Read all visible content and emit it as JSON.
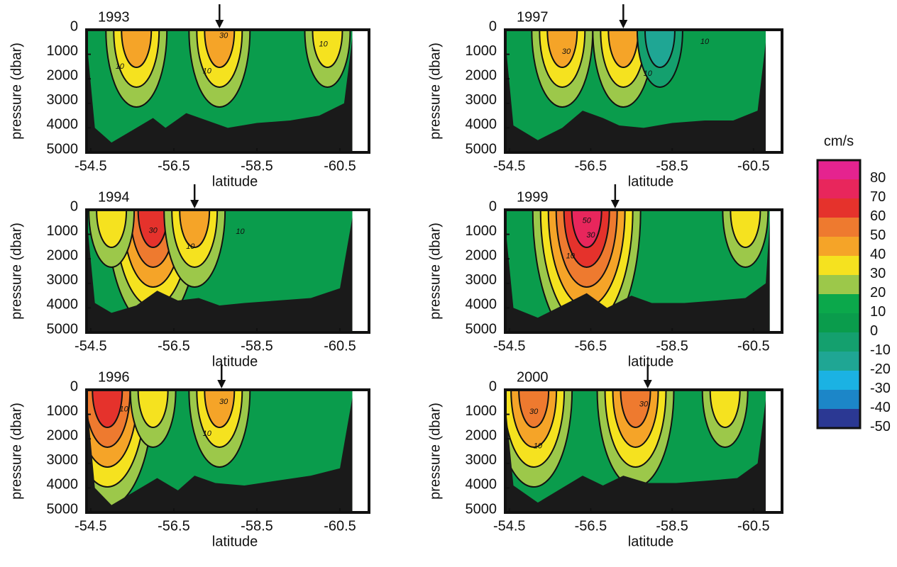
{
  "chart_data": [
    {
      "type": "contour",
      "title": "1993",
      "xlabel": "latitude",
      "ylabel": "pressure (dbar)",
      "xlim": [
        -54.4,
        -61.2
      ],
      "ylim": [
        0,
        5000
      ],
      "xticks": [
        -54.5,
        -56.5,
        -58.5,
        -60.5
      ],
      "yticks": [
        0,
        1000,
        2000,
        3000,
        4000,
        5000
      ],
      "arrow_lat": -57.6,
      "jet_cores": [
        {
          "lat": -57.6,
          "speed": 30
        },
        {
          "lat": -55.6,
          "speed": 30
        },
        {
          "lat": -60.2,
          "speed": 20
        }
      ],
      "contour_labels": [
        {
          "value": 30,
          "lat": -57.7,
          "pressure": 250
        },
        {
          "value": 10,
          "lat": -55.2,
          "pressure": 1500
        },
        {
          "value": 10,
          "lat": -57.3,
          "pressure": 1700
        },
        {
          "value": 10,
          "lat": -60.1,
          "pressure": 600
        }
      ],
      "bottom": {
        "lat": [
          -54.4,
          -54.6,
          -55.0,
          -55.5,
          -56.0,
          -56.3,
          -56.8,
          -57.3,
          -57.8,
          -58.5,
          -59.3,
          -60.0,
          -60.6,
          -60.8
        ],
        "depth": [
          400,
          4000,
          4600,
          4100,
          3600,
          4000,
          3400,
          3700,
          4000,
          3800,
          3700,
          3500,
          3000,
          300
        ]
      }
    },
    {
      "type": "contour",
      "title": "1997",
      "xlabel": "latitude",
      "ylabel": "pressure (dbar)",
      "xlim": [
        -54.4,
        -61.2
      ],
      "ylim": [
        0,
        5000
      ],
      "xticks": [
        -54.5,
        -56.5,
        -58.5,
        -60.5
      ],
      "yticks": [
        0,
        1000,
        2000,
        3000,
        4000,
        5000
      ],
      "arrow_lat": -57.3,
      "jet_cores": [
        {
          "lat": -55.8,
          "speed": 30
        },
        {
          "lat": -57.3,
          "speed": 30
        },
        {
          "lat": -58.2,
          "speed": -20
        }
      ],
      "contour_labels": [
        {
          "value": 30,
          "lat": -55.9,
          "pressure": 900
        },
        {
          "value": 10,
          "lat": -57.9,
          "pressure": 1800
        },
        {
          "value": 10,
          "lat": -59.3,
          "pressure": 500
        }
      ],
      "bottom": {
        "lat": [
          -54.4,
          -54.6,
          -55.2,
          -55.8,
          -56.3,
          -56.8,
          -57.2,
          -57.8,
          -58.5,
          -59.3,
          -60.0,
          -60.6,
          -60.8
        ],
        "depth": [
          400,
          3900,
          4500,
          4000,
          3300,
          3600,
          3900,
          4000,
          3800,
          3700,
          3700,
          3300,
          500
        ]
      }
    },
    {
      "type": "contour",
      "title": "1994",
      "xlabel": "latitude",
      "ylabel": "pressure (dbar)",
      "xlim": [
        -54.4,
        -61.2
      ],
      "ylim": [
        0,
        5000
      ],
      "xticks": [
        -54.5,
        -56.5,
        -58.5,
        -60.5
      ],
      "yticks": [
        0,
        1000,
        2000,
        3000,
        4000,
        5000
      ],
      "arrow_lat": -57.0,
      "jet_cores": [
        {
          "lat": -56.0,
          "speed": 50
        },
        {
          "lat": -57.0,
          "speed": 30
        },
        {
          "lat": -55.0,
          "speed": 20
        }
      ],
      "contour_labels": [
        {
          "value": 30,
          "lat": -56.0,
          "pressure": 850
        },
        {
          "value": 10,
          "lat": -56.9,
          "pressure": 1500
        },
        {
          "value": 10,
          "lat": -58.1,
          "pressure": 900
        }
      ],
      "bottom": {
        "lat": [
          -54.4,
          -54.6,
          -55.0,
          -55.6,
          -56.1,
          -56.6,
          -57.1,
          -57.6,
          -58.2,
          -59.0,
          -59.8,
          -60.5,
          -60.8
        ],
        "depth": [
          300,
          3800,
          4200,
          3900,
          3300,
          3700,
          3600,
          3900,
          3800,
          3700,
          3600,
          3200,
          300
        ]
      }
    },
    {
      "type": "contour",
      "title": "1999",
      "xlabel": "latitude",
      "ylabel": "pressure (dbar)",
      "xlim": [
        -54.4,
        -61.2
      ],
      "ylim": [
        0,
        5000
      ],
      "xticks": [
        -54.5,
        -56.5,
        -58.5,
        -60.5
      ],
      "yticks": [
        0,
        1000,
        2000,
        3000,
        4000,
        5000
      ],
      "arrow_lat": -57.1,
      "jet_cores": [
        {
          "lat": -56.4,
          "speed": 60
        },
        {
          "lat": -60.3,
          "speed": 20
        }
      ],
      "contour_labels": [
        {
          "value": 50,
          "lat": -56.4,
          "pressure": 450
        },
        {
          "value": 30,
          "lat": -56.5,
          "pressure": 1050
        },
        {
          "value": 10,
          "lat": -56.0,
          "pressure": 1900
        }
      ],
      "bottom": {
        "lat": [
          -54.4,
          -54.6,
          -55.2,
          -55.8,
          -56.4,
          -56.9,
          -57.5,
          -58.0,
          -58.8,
          -59.6,
          -60.3,
          -60.8,
          -60.9
        ],
        "depth": [
          600,
          4000,
          4400,
          3900,
          3400,
          4000,
          3500,
          3800,
          3800,
          3700,
          3600,
          3000,
          400
        ]
      }
    },
    {
      "type": "contour",
      "title": "1996",
      "xlabel": "latitude",
      "ylabel": "pressure (dbar)",
      "xlim": [
        -54.4,
        -61.2
      ],
      "ylim": [
        0,
        5000
      ],
      "xticks": [
        -54.5,
        -56.5,
        -58.5,
        -60.5
      ],
      "yticks": [
        0,
        1000,
        2000,
        3000,
        4000,
        5000
      ],
      "arrow_lat": -57.65,
      "jet_cores": [
        {
          "lat": -57.6,
          "speed": 30
        },
        {
          "lat": -54.9,
          "speed": 50
        },
        {
          "lat": -56.0,
          "speed": 20
        }
      ],
      "contour_labels": [
        {
          "value": 30,
          "lat": -57.7,
          "pressure": 500
        },
        {
          "value": 10,
          "lat": -55.3,
          "pressure": 800
        },
        {
          "value": 10,
          "lat": -57.3,
          "pressure": 1800
        }
      ],
      "bottom": {
        "lat": [
          -54.4,
          -54.6,
          -55.0,
          -55.6,
          -56.1,
          -56.6,
          -57.0,
          -57.5,
          -58.2,
          -59.0,
          -59.8,
          -60.5,
          -60.8
        ],
        "depth": [
          300,
          4000,
          4700,
          4100,
          3600,
          4100,
          3500,
          3800,
          3900,
          3700,
          3500,
          3200,
          300
        ]
      }
    },
    {
      "type": "contour",
      "title": "2000",
      "xlabel": "latitude",
      "ylabel": "pressure (dbar)",
      "xlim": [
        -54.4,
        -61.2
      ],
      "ylim": [
        0,
        5000
      ],
      "xticks": [
        -54.5,
        -56.5,
        -58.5,
        -60.5
      ],
      "yticks": [
        0,
        1000,
        2000,
        3000,
        4000,
        5000
      ],
      "arrow_lat": -57.9,
      "jet_cores": [
        {
          "lat": -55.1,
          "speed": 40
        },
        {
          "lat": -57.6,
          "speed": 40
        },
        {
          "lat": -59.8,
          "speed": 20
        }
      ],
      "contour_labels": [
        {
          "value": 30,
          "lat": -55.1,
          "pressure": 900
        },
        {
          "value": 30,
          "lat": -57.8,
          "pressure": 600
        },
        {
          "value": 10,
          "lat": -55.2,
          "pressure": 2300
        }
      ],
      "bottom": {
        "lat": [
          -54.4,
          -54.6,
          -55.2,
          -55.8,
          -56.3,
          -56.8,
          -57.3,
          -57.9,
          -58.6,
          -59.4,
          -60.1,
          -60.6,
          -60.8
        ],
        "depth": [
          500,
          3900,
          4600,
          4000,
          3500,
          3900,
          3500,
          3800,
          3800,
          3700,
          3600,
          3000,
          400
        ]
      }
    }
  ],
  "colorbar": {
    "title": "cm/s",
    "levels": [
      80,
      70,
      60,
      50,
      40,
      30,
      20,
      10,
      0,
      -10,
      -20,
      -30,
      -40,
      -50
    ],
    "colors": [
      "#e5238f",
      "#e8265c",
      "#e5322c",
      "#ee7a2f",
      "#f5a428",
      "#f5e21f",
      "#9cc84a",
      "#0ba84b",
      "#0a9c4c",
      "#14a06e",
      "#1fa694",
      "#1bb2e3",
      "#1c86c8",
      "#2b3893"
    ]
  }
}
